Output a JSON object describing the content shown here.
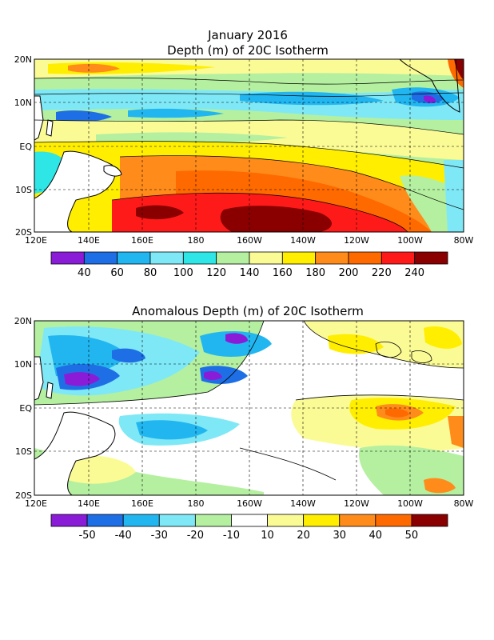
{
  "top_panel": {
    "title_line1": "January 2016",
    "title_line2": "Depth (m) of 20C Isotherm",
    "x_ticks": [
      "120E",
      "140E",
      "160E",
      "180",
      "160W",
      "140W",
      "120W",
      "100W",
      "80W"
    ],
    "y_ticks": [
      "20N",
      "10N",
      "EQ",
      "10S",
      "20S"
    ],
    "colorbar": {
      "labels": [
        "40",
        "60",
        "80",
        "100",
        "120",
        "140",
        "160",
        "180",
        "200",
        "220",
        "240"
      ],
      "colors": [
        "#8a1cd8",
        "#1e6fe6",
        "#22b6f0",
        "#7fe8f6",
        "#2ee6e6",
        "#b4f0a0",
        "#fbfb96",
        "#ffee00",
        "#ff8c1a",
        "#ff6a00",
        "#ff1a1a",
        "#8a0000"
      ]
    }
  },
  "bottom_panel": {
    "title": "Anomalous Depth (m) of 20C Isotherm",
    "x_ticks": [
      "120E",
      "140E",
      "160E",
      "180",
      "160W",
      "140W",
      "120W",
      "100W",
      "80W"
    ],
    "y_ticks": [
      "20N",
      "10N",
      "EQ",
      "10S",
      "20S"
    ],
    "colorbar": {
      "labels": [
        "-50",
        "-40",
        "-30",
        "-20",
        "-10",
        "10",
        "20",
        "30",
        "40",
        "50"
      ],
      "colors": [
        "#8a1cd8",
        "#1e6fe6",
        "#22b6f0",
        "#7fe8f6",
        "#b4f0a0",
        "#ffffff",
        "#fbfb96",
        "#ffee00",
        "#ff8c1a",
        "#ff6a00",
        "#8a0000"
      ]
    }
  }
}
